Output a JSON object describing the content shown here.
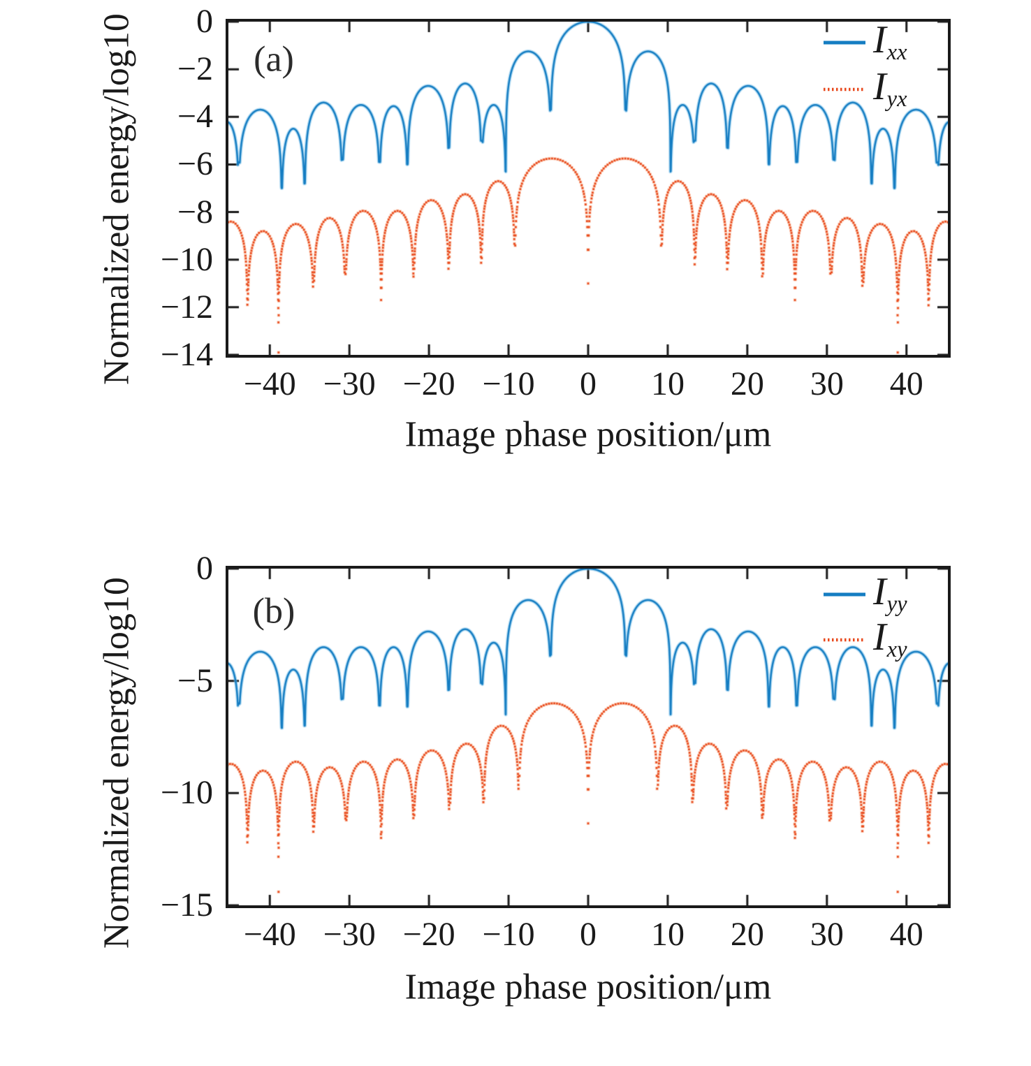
{
  "figure": {
    "background": "#ffffff",
    "frame_color": "#1a1a1a",
    "text_color": "#1a1a1a"
  },
  "chart_data": [
    {
      "type": "line",
      "panel_label": "(a)",
      "xlabel": "Image phase position/μm",
      "ylabel": "Normalized energy/log10",
      "xlim": [
        -45.2,
        45.2
      ],
      "ylim": [
        -14,
        0
      ],
      "grid": false,
      "legend_position": "top-right",
      "xticks": [
        -40,
        -30,
        -20,
        -10,
        0,
        10,
        20,
        30,
        40
      ],
      "xtick_labels": [
        "−40",
        "−30",
        "−20",
        "−10",
        "0",
        "10",
        "20",
        "30",
        "40"
      ],
      "yticks": [
        0,
        -2,
        -4,
        -6,
        -8,
        -10,
        -12,
        -14
      ],
      "ytick_labels": [
        "0",
        "−2",
        "−4",
        "−6",
        "−8",
        "−10",
        "−12",
        "−14"
      ],
      "lobe_model": "Each lobe spans x0..x1 (nulls of the pattern); y = peak + 2*log10(sin(pi*t)) in log10 units, clipped at the visible null depths d0,d1. Lobe entry = [x0, x1, peak, d0, d1].",
      "series": [
        {
          "name": "Ixx",
          "legend_main": "I",
          "legend_sub": "xx",
          "style": "solid",
          "color": "#157dc2",
          "halo": "rgba(125,195,235,0.55)",
          "lobes": [
            [
              -47.0,
              -43.9,
              -4.2,
              -9.0,
              -5.9
            ],
            [
              -43.9,
              -38.5,
              -3.7,
              -5.9,
              -7.0
            ],
            [
              -38.5,
              -35.6,
              -4.5,
              -7.0,
              -6.8
            ],
            [
              -35.6,
              -30.9,
              -3.4,
              -6.8,
              -5.8
            ],
            [
              -30.9,
              -26.2,
              -3.5,
              -5.8,
              -5.9
            ],
            [
              -26.2,
              -22.7,
              -3.55,
              -5.9,
              -6.0
            ],
            [
              -22.7,
              -17.5,
              -2.7,
              -6.0,
              -5.3
            ],
            [
              -17.5,
              -13.4,
              -2.6,
              -5.3,
              -5.0
            ],
            [
              -13.4,
              -10.35,
              -3.5,
              -5.0,
              -6.3
            ],
            [
              -10.35,
              -4.7,
              -1.25,
              -6.3,
              -3.7
            ],
            [
              -4.7,
              4.7,
              0,
              -3.7,
              -3.7
            ],
            [
              4.7,
              10.35,
              -1.25,
              -3.7,
              -6.3
            ],
            [
              10.35,
              13.4,
              -3.5,
              -6.3,
              -5.0
            ],
            [
              13.4,
              17.5,
              -2.6,
              -5.0,
              -5.3
            ],
            [
              17.5,
              22.7,
              -2.7,
              -5.3,
              -6.0
            ],
            [
              22.7,
              26.2,
              -3.55,
              -6.0,
              -5.9
            ],
            [
              26.2,
              30.9,
              -3.5,
              -5.9,
              -5.8
            ],
            [
              30.9,
              35.6,
              -3.4,
              -5.8,
              -6.8
            ],
            [
              35.6,
              38.5,
              -4.5,
              -6.8,
              -7.0
            ],
            [
              38.5,
              43.9,
              -3.7,
              -7.0,
              -5.9
            ],
            [
              43.9,
              47.0,
              -4.2,
              -5.9,
              -9.0
            ]
          ]
        },
        {
          "name": "Iyx",
          "legend_main": "I",
          "legend_sub": "yx",
          "style": "dotted",
          "color": "#e8491d",
          "halo": "rgba(244,150,105,0.45)",
          "lobes": [
            [
              -47.0,
              -42.8,
              -8.4,
              -10.5,
              -11.9
            ],
            [
              -42.8,
              -38.9,
              -8.8,
              -11.9,
              -13.9
            ],
            [
              -38.9,
              -34.5,
              -8.5,
              -13.9,
              -11.1
            ],
            [
              -34.5,
              -30.5,
              -8.25,
              -11.1,
              -10.6
            ],
            [
              -30.5,
              -26.0,
              -7.95,
              -10.6,
              -11.7
            ],
            [
              -26.0,
              -21.9,
              -7.95,
              -11.7,
              -10.7
            ],
            [
              -21.9,
              -17.5,
              -7.5,
              -10.7,
              -10.4
            ],
            [
              -17.5,
              -13.4,
              -7.25,
              -10.4,
              -10.2
            ],
            [
              -13.4,
              -9.2,
              -6.7,
              -10.2,
              -9.4
            ],
            [
              -9.2,
              0,
              -5.75,
              -9.4,
              -11.0
            ],
            [
              0,
              9.2,
              -5.75,
              -11.0,
              -9.4
            ],
            [
              9.2,
              13.4,
              -6.7,
              -9.4,
              -10.2
            ],
            [
              13.4,
              17.5,
              -7.25,
              -10.2,
              -10.4
            ],
            [
              17.5,
              21.9,
              -7.5,
              -10.4,
              -10.7
            ],
            [
              21.9,
              26.0,
              -7.95,
              -10.7,
              -11.7
            ],
            [
              26.0,
              30.5,
              -7.95,
              -11.7,
              -10.6
            ],
            [
              30.5,
              34.5,
              -8.25,
              -10.6,
              -11.1
            ],
            [
              34.5,
              38.9,
              -8.5,
              -11.1,
              -13.9
            ],
            [
              38.9,
              42.8,
              -8.8,
              -13.9,
              -11.9
            ],
            [
              42.8,
              47.0,
              -8.4,
              -11.9,
              -10.5
            ]
          ]
        }
      ]
    },
    {
      "type": "line",
      "panel_label": "(b)",
      "xlabel": "Image phase position/μm",
      "ylabel": "Normalized energy/log10",
      "xlim": [
        -45.2,
        45.2
      ],
      "ylim": [
        -15,
        0
      ],
      "grid": false,
      "legend_position": "top-right",
      "xticks": [
        -40,
        -30,
        -20,
        -10,
        0,
        10,
        20,
        30,
        40
      ],
      "xtick_labels": [
        "−40",
        "−30",
        "−20",
        "−10",
        "0",
        "10",
        "20",
        "30",
        "40"
      ],
      "yticks": [
        0,
        -5,
        -10,
        -15
      ],
      "ytick_labels": [
        "0",
        "−5",
        "−10",
        "−15"
      ],
      "lobe_model": "Each lobe spans x0..x1 (nulls of the pattern); y = peak + 2*log10(sin(pi*t)) in log10 units, clipped at the visible null depths d0,d1. Lobe entry = [x0, x1, peak, d0, d1].",
      "series": [
        {
          "name": "Iyy",
          "legend_main": "I",
          "legend_sub": "yy",
          "style": "solid",
          "color": "#157dc2",
          "halo": "rgba(125,195,235,0.55)",
          "lobes": [
            [
              -47.0,
              -43.9,
              -4.2,
              -9.0,
              -6.0
            ],
            [
              -43.9,
              -38.5,
              -3.7,
              -6.0,
              -7.1
            ],
            [
              -38.5,
              -35.6,
              -4.5,
              -7.1,
              -7.0
            ],
            [
              -35.6,
              -30.9,
              -3.5,
              -7.0,
              -5.8
            ],
            [
              -30.9,
              -26.2,
              -3.5,
              -5.8,
              -6.1
            ],
            [
              -26.2,
              -22.7,
              -3.5,
              -6.1,
              -6.15
            ],
            [
              -22.7,
              -17.5,
              -2.8,
              -6.15,
              -5.4
            ],
            [
              -17.5,
              -13.4,
              -2.7,
              -5.4,
              -5.1
            ],
            [
              -13.4,
              -10.35,
              -3.3,
              -5.1,
              -6.5
            ],
            [
              -10.35,
              -4.7,
              -1.4,
              -6.5,
              -3.85
            ],
            [
              -4.7,
              4.7,
              0,
              -3.85,
              -3.85
            ],
            [
              4.7,
              10.35,
              -1.4,
              -3.85,
              -6.5
            ],
            [
              10.35,
              13.4,
              -3.3,
              -6.5,
              -5.1
            ],
            [
              13.4,
              17.5,
              -2.7,
              -5.1,
              -5.4
            ],
            [
              17.5,
              22.7,
              -2.8,
              -5.4,
              -6.15
            ],
            [
              22.7,
              26.2,
              -3.5,
              -6.15,
              -6.1
            ],
            [
              26.2,
              30.9,
              -3.5,
              -6.1,
              -5.8
            ],
            [
              30.9,
              35.6,
              -3.5,
              -5.8,
              -7.0
            ],
            [
              35.6,
              38.5,
              -4.5,
              -7.0,
              -7.1
            ],
            [
              38.5,
              43.9,
              -3.7,
              -7.1,
              -6.0
            ],
            [
              43.9,
              47.0,
              -4.2,
              -6.0,
              -9.0
            ]
          ]
        },
        {
          "name": "Ixy",
          "legend_main": "I",
          "legend_sub": "xy",
          "style": "dotted",
          "color": "#e8491d",
          "halo": "rgba(244,150,105,0.45)",
          "lobes": [
            [
              -47.0,
              -42.8,
              -8.7,
              -10.8,
              -12.2
            ],
            [
              -42.8,
              -38.9,
              -9.0,
              -12.2,
              -14.4
            ],
            [
              -38.9,
              -34.5,
              -8.6,
              -14.4,
              -11.7
            ],
            [
              -34.5,
              -30.4,
              -8.85,
              -11.7,
              -11.2
            ],
            [
              -30.4,
              -26.0,
              -8.6,
              -11.2,
              -12.0
            ],
            [
              -26.0,
              -21.9,
              -8.5,
              -12.0,
              -11.1
            ],
            [
              -21.9,
              -17.4,
              -8.1,
              -11.1,
              -10.7
            ],
            [
              -17.4,
              -13.1,
              -7.8,
              -10.7,
              -10.4
            ],
            [
              -13.1,
              -8.7,
              -7.0,
              -10.4,
              -9.8
            ],
            [
              -8.7,
              0,
              -6.0,
              -9.8,
              -11.35
            ],
            [
              0,
              8.7,
              -6.0,
              -11.35,
              -9.8
            ],
            [
              8.7,
              13.1,
              -7.0,
              -9.8,
              -10.4
            ],
            [
              13.1,
              17.4,
              -7.8,
              -10.4,
              -10.7
            ],
            [
              17.4,
              21.9,
              -8.1,
              -10.7,
              -11.1
            ],
            [
              21.9,
              26.0,
              -8.5,
              -11.1,
              -12.0
            ],
            [
              26.0,
              30.4,
              -8.6,
              -12.0,
              -11.2
            ],
            [
              30.4,
              34.5,
              -8.85,
              -11.2,
              -11.7
            ],
            [
              34.5,
              38.9,
              -8.6,
              -11.7,
              -14.4
            ],
            [
              38.9,
              42.8,
              -9.0,
              -14.4,
              -12.2
            ],
            [
              42.8,
              47.0,
              -8.7,
              -12.2,
              -10.8
            ]
          ]
        }
      ]
    }
  ]
}
